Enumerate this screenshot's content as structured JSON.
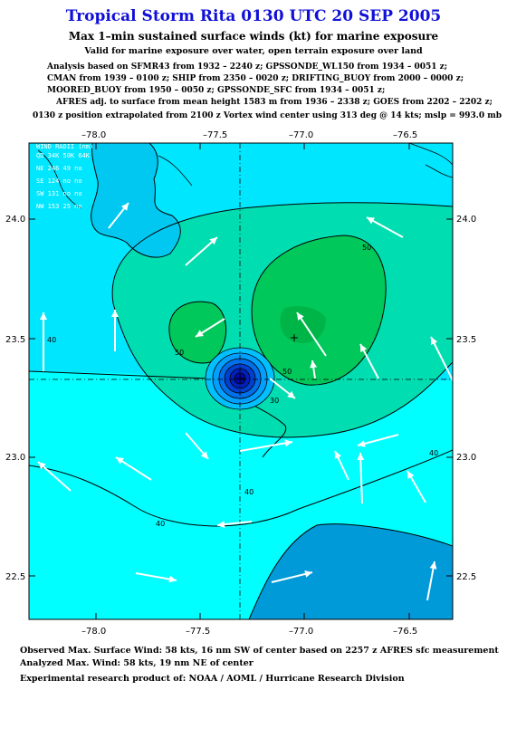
{
  "header": {
    "title": "Tropical Storm Rita 0130 UTC 20 SEP 2005",
    "subtitle": "Max 1–min sustained surface winds (kt) for marine exposure",
    "valid": "Valid for marine exposure over water, open terrain exposure over land"
  },
  "analysis": {
    "line1": "Analysis based on  SFMR43 from 1932 – 2240 z;  GPSSONDE_WL150 from 1934 – 0051 z;",
    "line2": "CMAN from 1939 – 0100 z;  SHIP from 2350 – 0020 z;  DRIFTING_BUOY from 2000 – 0000 z;",
    "line3": "MOORED_BUOY from 1950 – 0050 z;  GPSSONDE_SFC from 1934 – 0051 z;",
    "line4": "AFRES adj. to surface from mean height 1583 m from 1936 – 2338 z;  GOES from 2202 – 2202 z;",
    "line5": "0130 z position extrapolated from 2100 z Vortex wind center using 313 deg @ 14 kts; mslp = 993.0 mb"
  },
  "map": {
    "lon_ticks": [
      "–78.0",
      "–77.5",
      "–77.0",
      "–76.5"
    ],
    "lat_ticks": [
      "24.0",
      "23.5",
      "23.0",
      "22.5"
    ],
    "wind_radii": {
      "header": "WIND RADII (nm)",
      "columns": "QD 34K 50K 64K",
      "rows": [
        "NE 246  49  no",
        "SE 124  no  no",
        "SW 131  no  no",
        "NW 153  25  no"
      ]
    },
    "contour_labels": [
      "50",
      "50",
      "50",
      "40",
      "40",
      "40",
      "40",
      "30"
    ],
    "colors": {
      "fill_lt30": "#00e6ff",
      "fill_30_40": "#00ffff",
      "fill_40_50": "#00ddb0",
      "fill_ge50": "#00c85a",
      "south_patch": "#009ad8",
      "land": "#00c8f0",
      "vortex_core": "#0008a8",
      "arrows": "#ffffff"
    },
    "icons": [
      "storm-center-marker",
      "max-wind-marker",
      "wind-vector-arrow"
    ]
  },
  "footer": {
    "observed": "Observed Max. Surface Wind: 58 kts, 16 nm SW of center based on 2257 z AFRES sfc measurement",
    "analyzed": "Analyzed Max. Wind: 58 kts, 19 nm NE of center",
    "credit": "Experimental research product of:  NOAA / AOML / Hurricane Research Division"
  }
}
